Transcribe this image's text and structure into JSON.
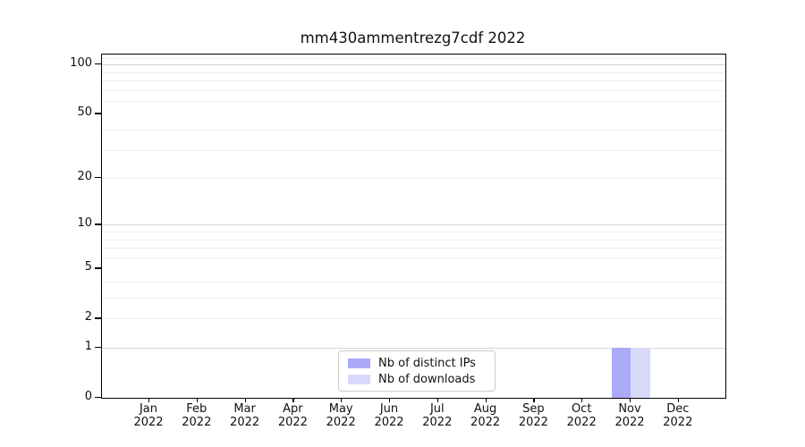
{
  "title": "mm430ammentrezg7cdf 2022",
  "chart_data": {
    "type": "bar",
    "title": "mm430ammentrezg7cdf 2022",
    "categories": [
      "Jan 2022",
      "Feb 2022",
      "Mar 2022",
      "Apr 2022",
      "May 2022",
      "Jun 2022",
      "Jul 2022",
      "Aug 2022",
      "Sep 2022",
      "Oct 2022",
      "Nov 2022",
      "Dec 2022"
    ],
    "series": [
      {
        "name": "Nb of distinct IPs",
        "color": "#aaaaf8",
        "values": [
          0,
          0,
          0,
          0,
          0,
          0,
          0,
          0,
          0,
          0,
          1,
          0
        ]
      },
      {
        "name": "Nb of downloads",
        "color": "#d8d8fa",
        "values": [
          0,
          0,
          0,
          0,
          0,
          0,
          0,
          0,
          0,
          0,
          1,
          0
        ]
      }
    ],
    "xlabel": "",
    "ylabel": "",
    "yscale": "log1p",
    "ylim": [
      0,
      115
    ],
    "yticks": [
      100,
      50,
      20,
      10,
      5,
      2,
      1,
      0
    ],
    "major_gridlines": [
      1,
      10,
      100
    ],
    "minor_gridlines": [
      2,
      3,
      4,
      6,
      7,
      8,
      9,
      20,
      30,
      40,
      60,
      70,
      80,
      90,
      110
    ],
    "grid": true,
    "legend_position": "lower center"
  },
  "legend": {
    "items": [
      {
        "label": "Nb of distinct IPs",
        "color": "#aaaaf8"
      },
      {
        "label": "Nb of downloads",
        "color": "#d8d8fa"
      }
    ]
  }
}
